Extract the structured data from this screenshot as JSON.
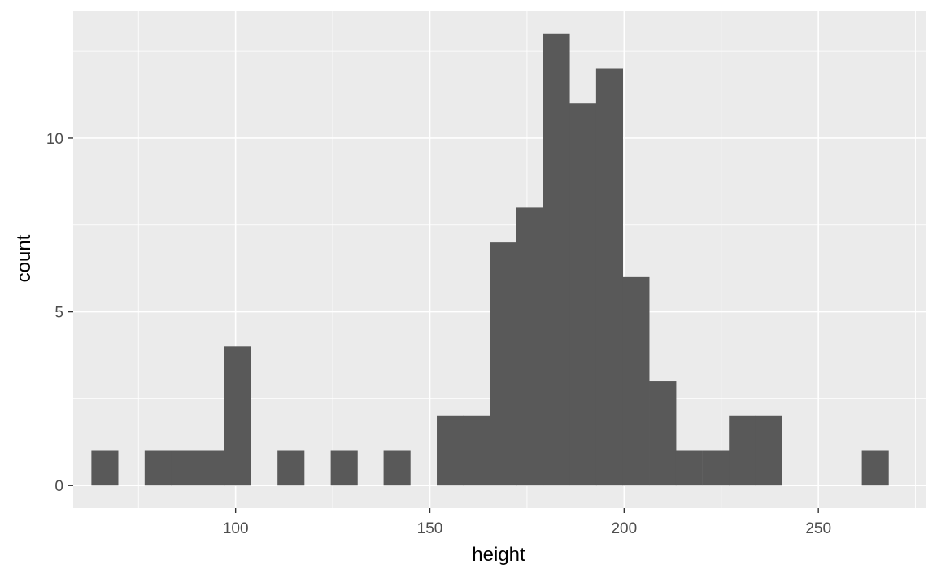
{
  "chart_data": {
    "type": "bar",
    "subtype": "histogram",
    "xlabel": "height",
    "ylabel": "count",
    "bin_width": 6.83,
    "bins": [
      {
        "center": 66.3,
        "count": 1
      },
      {
        "center": 73.2,
        "count": 0
      },
      {
        "center": 80.0,
        "count": 1
      },
      {
        "center": 86.8,
        "count": 1
      },
      {
        "center": 93.7,
        "count": 1
      },
      {
        "center": 100.5,
        "count": 4
      },
      {
        "center": 107.3,
        "count": 0
      },
      {
        "center": 114.2,
        "count": 1
      },
      {
        "center": 121.0,
        "count": 0
      },
      {
        "center": 127.9,
        "count": 1
      },
      {
        "center": 134.7,
        "count": 0
      },
      {
        "center": 141.5,
        "count": 1
      },
      {
        "center": 148.4,
        "count": 0
      },
      {
        "center": 155.2,
        "count": 2
      },
      {
        "center": 162.0,
        "count": 2
      },
      {
        "center": 168.9,
        "count": 7
      },
      {
        "center": 175.7,
        "count": 8
      },
      {
        "center": 182.5,
        "count": 13
      },
      {
        "center": 189.4,
        "count": 11
      },
      {
        "center": 196.2,
        "count": 12
      },
      {
        "center": 203.0,
        "count": 6
      },
      {
        "center": 209.9,
        "count": 3
      },
      {
        "center": 216.7,
        "count": 1
      },
      {
        "center": 223.6,
        "count": 1
      },
      {
        "center": 230.4,
        "count": 2
      },
      {
        "center": 237.2,
        "count": 2
      },
      {
        "center": 244.1,
        "count": 0
      },
      {
        "center": 250.9,
        "count": 0
      },
      {
        "center": 257.7,
        "count": 0
      },
      {
        "center": 264.6,
        "count": 1
      }
    ],
    "x_ticks": [
      100,
      150,
      200,
      250
    ],
    "y_ticks": [
      0,
      5,
      10
    ],
    "xlim": [
      58.2,
      277.6
    ],
    "ylim": [
      -0.65,
      13.65
    ],
    "grid": true,
    "bar_color": "#595959",
    "panel_color": "#ebebeb",
    "grid_color": "#ffffff"
  }
}
